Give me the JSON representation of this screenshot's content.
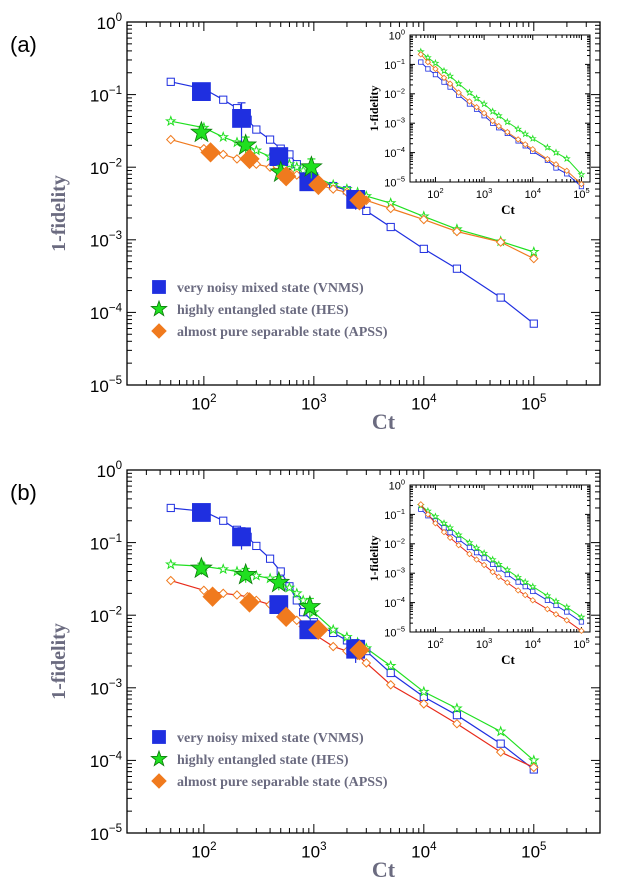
{
  "colors": {
    "vnms": "#1f2fe0",
    "hes": "#20e020",
    "apss": "#f07a1e",
    "apss_line_b": "#e82a1a",
    "axis_label": "#6b6b80"
  },
  "chart_data": [
    {
      "panel": "(a)",
      "type": "line",
      "xlabel": "Ct",
      "ylabel": "1-fidelity",
      "xscale": "log",
      "yscale": "log",
      "xlim": [
        20,
        400000
      ],
      "ylim": [
        1e-05,
        1
      ],
      "xticks": [
        "10^2",
        "10^3",
        "10^4",
        "10^5"
      ],
      "yticks": [
        "10^0",
        "10^-1",
        "10^-2",
        "10^-3",
        "10^-4",
        "10^-5"
      ],
      "legend": [
        "very noisy mixed state (VNMS)",
        "highly entangled state (HES)",
        "almost pure separable state (APSS)"
      ],
      "series": [
        {
          "name": "very noisy mixed state (VNMS)",
          "x": [
            50,
            100,
            150,
            200,
            250,
            300,
            400,
            500,
            600,
            700,
            800,
            1000,
            1500,
            2000,
            2500,
            3000,
            5000,
            10000,
            20000,
            50000,
            100000
          ],
          "y": [
            0.15,
            0.12,
            0.085,
            0.065,
            0.045,
            0.033,
            0.024,
            0.018,
            0.015,
            0.011,
            0.008,
            0.0068,
            0.0055,
            0.0048,
            0.0042,
            0.0025,
            0.0015,
            0.00075,
            0.0004,
            0.00016,
            7e-05
          ]
        },
        {
          "name": "highly entangled state (HES)",
          "x": [
            50,
            100,
            150,
            200,
            250,
            300,
            400,
            500,
            600,
            700,
            800,
            1000,
            1500,
            2000,
            2500,
            3000,
            5000,
            10000,
            20000,
            50000,
            100000
          ],
          "y": [
            0.043,
            0.035,
            0.026,
            0.022,
            0.02,
            0.017,
            0.014,
            0.012,
            0.011,
            0.01,
            0.009,
            0.0075,
            0.0057,
            0.005,
            0.0045,
            0.004,
            0.0032,
            0.0021,
            0.0014,
            0.00095,
            0.00068
          ]
        },
        {
          "name": "almost pure separable state (APSS)",
          "x": [
            50,
            100,
            150,
            200,
            250,
            300,
            400,
            500,
            600,
            700,
            800,
            1000,
            1500,
            2000,
            2500,
            3000,
            5000,
            10000,
            20000,
            50000,
            100000
          ],
          "y": [
            0.024,
            0.018,
            0.015,
            0.013,
            0.012,
            0.011,
            0.01,
            0.0093,
            0.0085,
            0.0078,
            0.0072,
            0.006,
            0.005,
            0.0045,
            0.0041,
            0.0035,
            0.0027,
            0.0019,
            0.0013,
            0.00093,
            0.00055
          ]
        }
      ],
      "markers": [
        {
          "series": 0,
          "x": [
            95,
            220,
            480,
            900,
            2400
          ],
          "y": [
            0.11,
            0.047,
            0.014,
            0.0063,
            0.0036
          ],
          "err": [
            0.018,
            0.03,
            0.004,
            0.0015,
            0.001
          ]
        },
        {
          "series": 1,
          "x": [
            95,
            240,
            500,
            950
          ],
          "y": [
            0.03,
            0.02,
            0.0085,
            0.01
          ],
          "err": [
            0.006,
            0.006,
            0.002,
            0.003
          ]
        },
        {
          "series": 2,
          "x": [
            115,
            260,
            560,
            1100,
            2600
          ],
          "y": [
            0.016,
            0.013,
            0.0075,
            0.0057,
            0.0035
          ],
          "err": [
            0.002,
            0.002,
            0.001,
            0.0008,
            0.0006
          ]
        }
      ],
      "inset": {
        "xlabel": "Ct",
        "ylabel": "1-fidelity",
        "xlim": [
          30,
          150000
        ],
        "ylim": [
          1e-05,
          1
        ],
        "xticks": [
          "10^2",
          "10^3",
          "10^4",
          "10^5"
        ],
        "yticks": [
          "10^0",
          "10^-1",
          "10^-2",
          "10^-3",
          "10^-4",
          "10^-5"
        ],
        "x": [
          50,
          70,
          100,
          150,
          200,
          300,
          500,
          700,
          1000,
          1500,
          2000,
          3000,
          5000,
          7000,
          10000,
          20000,
          30000,
          50000,
          100000
        ],
        "series": [
          {
            "y": [
              0.12,
              0.07,
              0.045,
              0.025,
              0.017,
              0.009,
              0.0045,
              0.003,
              0.0018,
              0.001,
              0.0007,
              0.00045,
              0.00025,
              0.00017,
              0.00011,
              5.5e-05,
              3e-05,
              1.9e-05,
              7e-06
            ]
          },
          {
            "y": [
              0.27,
              0.17,
              0.11,
              0.06,
              0.04,
              0.022,
              0.011,
              0.007,
              0.0045,
              0.0025,
              0.0018,
              0.0011,
              0.00063,
              0.00043,
              0.0003,
              0.00015,
              0.0001,
              6.2e-05,
              1.8e-05
            ]
          },
          {
            "y": [
              0.22,
              0.12,
              0.07,
              0.035,
              0.022,
              0.011,
              0.0055,
              0.0035,
              0.0022,
              0.0012,
              0.0008,
              0.0005,
              0.00028,
              0.00019,
              0.00013,
              6e-05,
              4e-05,
              2.4e-05,
              8.5e-06
            ]
          }
        ]
      }
    },
    {
      "panel": "(b)",
      "type": "line",
      "xlabel": "Ct",
      "ylabel": "1-fidelity",
      "xscale": "log",
      "yscale": "log",
      "xlim": [
        20,
        400000
      ],
      "ylim": [
        1e-05,
        1
      ],
      "xticks": [
        "10^2",
        "10^3",
        "10^4",
        "10^5"
      ],
      "yticks": [
        "10^0",
        "10^-1",
        "10^-2",
        "10^-3",
        "10^-4",
        "10^-5"
      ],
      "legend": [
        "very noisy mixed state (VNMS)",
        "highly entangled state (HES)",
        "almost pure separable state (APSS)"
      ],
      "series": [
        {
          "name": "very noisy mixed state (VNMS)",
          "x": [
            50,
            100,
            150,
            200,
            250,
            300,
            400,
            500,
            600,
            700,
            800,
            1000,
            1500,
            2000,
            2500,
            3000,
            5000,
            10000,
            20000,
            50000,
            100000
          ],
          "y": [
            0.3,
            0.27,
            0.2,
            0.15,
            0.12,
            0.09,
            0.06,
            0.04,
            0.025,
            0.016,
            0.011,
            0.008,
            0.0057,
            0.0045,
            0.0038,
            0.0032,
            0.0016,
            0.00075,
            0.00042,
            0.00017,
            7.5e-05
          ]
        },
        {
          "name": "highly entangled state (HES)",
          "x": [
            50,
            100,
            150,
            200,
            250,
            300,
            400,
            500,
            600,
            700,
            800,
            1000,
            1500,
            2000,
            2500,
            3000,
            5000,
            10000,
            20000,
            50000,
            100000
          ],
          "y": [
            0.05,
            0.047,
            0.043,
            0.04,
            0.037,
            0.035,
            0.032,
            0.028,
            0.024,
            0.02,
            0.016,
            0.011,
            0.0063,
            0.005,
            0.0042,
            0.0035,
            0.002,
            0.00088,
            0.00052,
            0.00025,
            0.0001
          ]
        },
        {
          "name": "almost pure separable state (APSS)",
          "x": [
            50,
            100,
            150,
            200,
            250,
            300,
            400,
            500,
            600,
            700,
            800,
            1000,
            1500,
            2000,
            2500,
            3000,
            5000,
            10000,
            20000,
            50000,
            100000
          ],
          "y": [
            0.03,
            0.022,
            0.02,
            0.019,
            0.018,
            0.016,
            0.014,
            0.012,
            0.01,
            0.0085,
            0.007,
            0.0055,
            0.0037,
            0.0032,
            0.0028,
            0.0022,
            0.0011,
            0.0006,
            0.00032,
            0.00013,
            8e-05
          ]
        }
      ],
      "markers": [
        {
          "series": 0,
          "x": [
            95,
            220,
            480,
            900,
            2400
          ],
          "y": [
            0.26,
            0.12,
            0.014,
            0.0063,
            0.0034
          ],
          "err": [
            0.03,
            0.04,
            0.004,
            0.0015,
            0.0012
          ]
        },
        {
          "series": 1,
          "x": [
            95,
            240,
            480,
            920
          ],
          "y": [
            0.044,
            0.036,
            0.028,
            0.013
          ],
          "err": [
            0.008,
            0.008,
            0.006,
            0.004
          ]
        },
        {
          "series": 2,
          "x": [
            120,
            260,
            560,
            1100,
            2600
          ],
          "y": [
            0.018,
            0.015,
            0.0095,
            0.0063,
            0.0033
          ],
          "err": [
            0.002,
            0.002,
            0.0015,
            0.001,
            0.0006
          ]
        }
      ],
      "inset": {
        "xlabel": "Ct",
        "ylabel": "1-fidelity",
        "xlim": [
          30,
          150000
        ],
        "ylim": [
          1e-05,
          1
        ],
        "xticks": [
          "10^2",
          "10^3",
          "10^4",
          "10^5"
        ],
        "yticks": [
          "10^0",
          "10^-1",
          "10^-2",
          "10^-3",
          "10^-4",
          "10^-5"
        ],
        "x": [
          50,
          70,
          100,
          150,
          200,
          300,
          500,
          700,
          1000,
          1500,
          2000,
          3000,
          5000,
          7000,
          10000,
          20000,
          30000,
          50000,
          100000
        ],
        "series": [
          {
            "y": [
              0.15,
              0.09,
              0.06,
              0.035,
              0.024,
              0.014,
              0.0075,
              0.005,
              0.0033,
              0.002,
              0.0014,
              0.0009,
              0.0005,
              0.00035,
              0.00024,
              0.00012,
              8e-05,
              4.8e-05,
              2.2e-05
            ]
          },
          {
            "y": [
              0.2,
              0.13,
              0.085,
              0.05,
              0.035,
              0.02,
              0.011,
              0.0072,
              0.0048,
              0.0029,
              0.002,
              0.0013,
              0.00072,
              0.0005,
              0.00035,
              0.00017,
              0.00011,
              7e-05,
              3.2e-05
            ]
          },
          {
            "y": [
              0.22,
              0.1,
              0.05,
              0.025,
              0.016,
              0.009,
              0.0045,
              0.0029,
              0.0019,
              0.0011,
              0.00075,
              0.00048,
              0.00026,
              0.00018,
              0.00012,
              6e-05,
              4e-05,
              2.5e-05,
              1.1e-05
            ]
          }
        ]
      }
    }
  ]
}
